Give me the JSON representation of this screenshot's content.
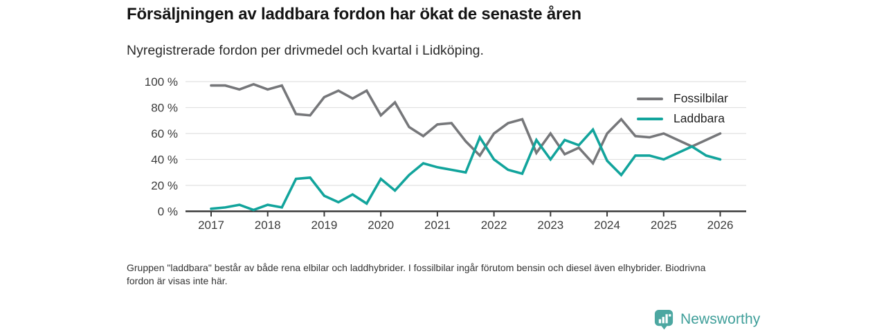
{
  "header": {
    "title": "Försäljningen av laddbara fordon har ökat de senaste åren",
    "subtitle": "Nyregistrerade fordon per drivmedel och kvartal i Lidköping."
  },
  "footnote": "Gruppen \"laddbara\" består av både rena elbilar och laddhybrider. I fossilbilar ingår förutom bensin och diesel även elhybrider. Biodrivna fordon är visas inte här.",
  "branding": {
    "name": "Newsworthy",
    "icon": "bar-chart-pin-icon",
    "icon_color": "#4CA7A1",
    "text_color": "#3E9E99"
  },
  "chart_data": {
    "type": "line",
    "title": "Försäljningen av laddbara fordon har ökat de senaste åren",
    "subtitle": "Nyregistrerade fordon per drivmedel och kvartal i Lidköping.",
    "x_unit": "quarter",
    "x_start": "2017 Q1",
    "x_end": "2026 Q1",
    "x_tick_labels": [
      "2017",
      "2018",
      "2019",
      "2020",
      "2021",
      "2022",
      "2023",
      "2024",
      "2025",
      "2026"
    ],
    "y_tick_labels": [
      "0 %",
      "20 %",
      "40 %",
      "60 %",
      "80 %",
      "100 %"
    ],
    "y_ticks": [
      0,
      20,
      40,
      60,
      80,
      100
    ],
    "ylim": [
      0,
      100
    ],
    "grid": "horizontal",
    "legend_position": "top-right",
    "quarters": [
      "2017Q1",
      "2017Q2",
      "2017Q3",
      "2017Q4",
      "2018Q1",
      "2018Q2",
      "2018Q3",
      "2018Q4",
      "2019Q1",
      "2019Q2",
      "2019Q3",
      "2019Q4",
      "2020Q1",
      "2020Q2",
      "2020Q3",
      "2020Q4",
      "2021Q1",
      "2021Q2",
      "2021Q3",
      "2021Q4",
      "2022Q1",
      "2022Q2",
      "2022Q3",
      "2022Q4",
      "2023Q1",
      "2023Q2",
      "2023Q3",
      "2023Q4",
      "2024Q1",
      "2024Q2",
      "2024Q3",
      "2024Q4",
      "2025Q1",
      "2025Q2",
      "2025Q3",
      "2025Q4",
      "2026Q1"
    ],
    "series": [
      {
        "name": "Fossilbilar",
        "color": "#76777A",
        "values": [
          97,
          97,
          94,
          98,
          94,
          97,
          75,
          74,
          88,
          93,
          87,
          93,
          74,
          84,
          65,
          58,
          67,
          68,
          54,
          43,
          60,
          68,
          71,
          45,
          60,
          44,
          49,
          37,
          60,
          71,
          58,
          57,
          60,
          55,
          50,
          55,
          60
        ]
      },
      {
        "name": "Laddbara",
        "color": "#12A49C",
        "values": [
          2,
          3,
          5,
          1,
          5,
          3,
          25,
          26,
          12,
          7,
          13,
          6,
          25,
          16,
          28,
          37,
          34,
          32,
          30,
          57,
          40,
          32,
          29,
          55,
          40,
          55,
          51,
          63,
          39,
          28,
          43,
          43,
          40,
          45,
          50,
          43,
          40
        ]
      }
    ]
  }
}
